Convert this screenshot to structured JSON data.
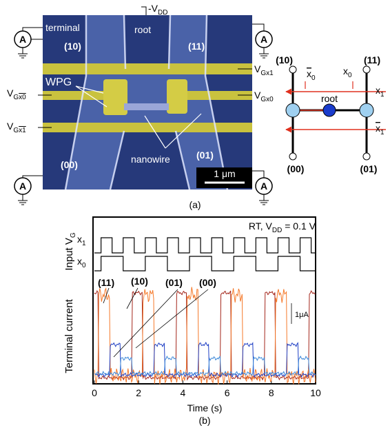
{
  "panel_a": {
    "vdd": {
      "main": "-V",
      "sub": "DD"
    },
    "root": "root",
    "terminal": "terminal",
    "terminals": [
      "(10)",
      "(11)",
      "(01)",
      "(00)"
    ],
    "wpg": "WPG",
    "ammeter": "A",
    "vgx1": {
      "main": "V",
      "sub": "Gx1"
    },
    "vgx0": {
      "main": "V",
      "sub": "Gx0"
    },
    "vgx0bar": {
      "main": "V",
      "sub": "G",
      "bar": "x0"
    },
    "vgx1bar": {
      "main": "V",
      "sub": "G",
      "bar": "x1"
    },
    "nanowire": "nanowire",
    "scale_bar": "1 μm",
    "caption": "(a)"
  },
  "schematic": {
    "nodes": [
      "(10)",
      "(11)",
      "(00)",
      "(01)"
    ],
    "root": "root",
    "x0bar": {
      "main": "x",
      "sub": "0"
    },
    "x0": {
      "main": "x",
      "sub": "0"
    },
    "x1": {
      "main": "x",
      "sub": "1"
    },
    "x1bar": {
      "main": "x",
      "sub": "1"
    }
  },
  "panel_b": {
    "condition": {
      "pre": "RT, V",
      "sub": "DD",
      "post": " = 0.1 V"
    },
    "input_label": {
      "main": "Input V",
      "sub": "G"
    },
    "current_label": "Terminal current",
    "x1": {
      "main": "x",
      "sub": "1"
    },
    "x0": {
      "main": "x",
      "sub": "0"
    },
    "traces": [
      "(11)",
      "(10)",
      "(01)",
      "(00)"
    ],
    "scale": "1μA",
    "xlim": [
      0,
      10
    ],
    "xticks": [
      0,
      2,
      4,
      6,
      8,
      10
    ],
    "xlabel": "Time (s)",
    "caption": "(b)"
  }
}
